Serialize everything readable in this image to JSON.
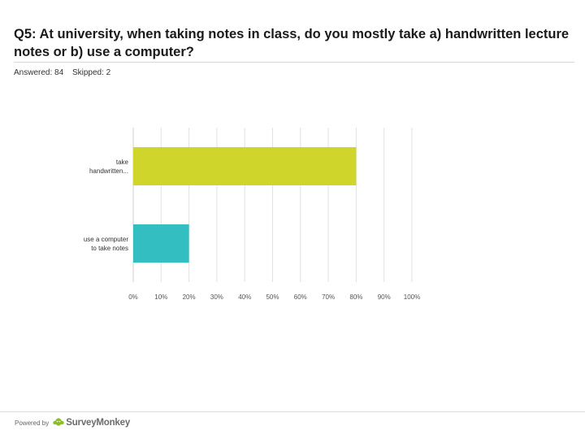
{
  "question": {
    "title": "Q5: At university, when taking notes in class, do you mostly take a) handwritten lecture notes or b) use a computer?"
  },
  "stats": {
    "answered": "Answered: 84",
    "skipped": "Skipped: 2"
  },
  "chart_data": {
    "type": "bar",
    "orientation": "horizontal",
    "categories": [
      [
        "take",
        "handwritten..."
      ],
      [
        "use a computer",
        "to take notes"
      ]
    ],
    "values": [
      80,
      20
    ],
    "colors": [
      "#cfd52a",
      "#33bfc1"
    ],
    "xlim": [
      0,
      100
    ],
    "ticks": [
      "0%",
      "10%",
      "20%",
      "30%",
      "40%",
      "50%",
      "60%",
      "70%",
      "80%",
      "90%",
      "100%"
    ],
    "grid": true,
    "title": "",
    "xlabel": "",
    "ylabel": ""
  },
  "footer": {
    "powered_by": "Powered by",
    "brand": "SurveyMonkey"
  }
}
